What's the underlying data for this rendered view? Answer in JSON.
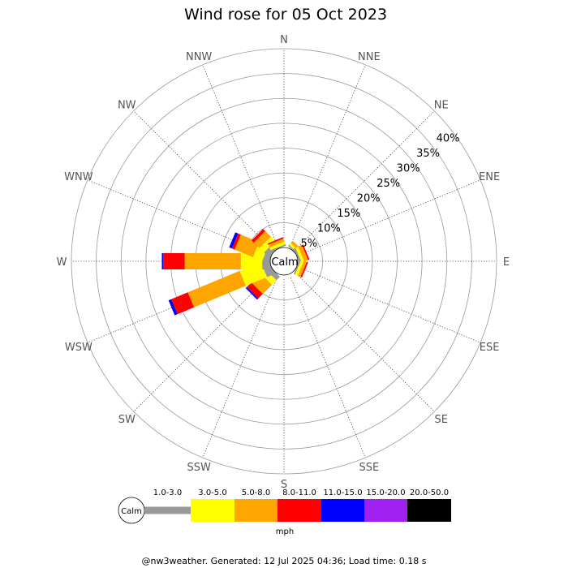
{
  "page": {
    "footer": "@nw3weather. Generated: 12 Jul 2025 04:36; Load time: 0.18 s"
  },
  "chart_data": {
    "type": "windrose",
    "title": "Wind rose for 05 Oct 2023",
    "center_label": "Calm",
    "unit": "mph",
    "directions": [
      "N",
      "NNE",
      "NE",
      "ENE",
      "E",
      "ESE",
      "SE",
      "SSE",
      "S",
      "SSW",
      "SW",
      "WSW",
      "W",
      "WNW",
      "NW",
      "NNW"
    ],
    "radial_ticks": [
      5,
      10,
      15,
      20,
      25,
      30,
      35,
      40
    ],
    "radial_tick_labels": [
      "5%",
      "10%",
      "15%",
      "20%",
      "25%",
      "30%",
      "35%",
      "40%"
    ],
    "radial_max": 40,
    "speed_bins": [
      {
        "label": "1.0-3.0",
        "color": "#999999"
      },
      {
        "label": "3.0-5.0",
        "color": "#ffff00"
      },
      {
        "label": "5.0-8.0",
        "color": "#ffa500"
      },
      {
        "label": "8.0-11.0",
        "color": "#ff0000"
      },
      {
        "label": "11.0-15.0",
        "color": "#0000ff"
      },
      {
        "label": "15.0-20.0",
        "color": "#a020f0"
      },
      {
        "label": "20.0-50.0",
        "color": "#000000"
      }
    ],
    "series": [
      {
        "direction": "N",
        "values": [
          0,
          0,
          0,
          0,
          0,
          0,
          0
        ]
      },
      {
        "direction": "NNE",
        "values": [
          0,
          0,
          0,
          0,
          0,
          0,
          0
        ]
      },
      {
        "direction": "NE",
        "values": [
          0.3,
          0.5,
          0.6,
          0,
          0,
          0,
          0
        ]
      },
      {
        "direction": "ENE",
        "values": [
          0.4,
          0.6,
          0.8,
          0.3,
          0,
          0,
          0
        ]
      },
      {
        "direction": "E",
        "values": [
          0,
          0,
          0,
          0,
          0,
          0,
          0
        ]
      },
      {
        "direction": "ESE",
        "values": [
          0.3,
          0.6,
          0.6,
          0.3,
          0,
          0,
          0
        ]
      },
      {
        "direction": "SE",
        "values": [
          0,
          0,
          0,
          0,
          0,
          0,
          0
        ]
      },
      {
        "direction": "SSE",
        "values": [
          0,
          0,
          0,
          0,
          0,
          0,
          0
        ]
      },
      {
        "direction": "S",
        "values": [
          0,
          0,
          0,
          0,
          0,
          0,
          0
        ]
      },
      {
        "direction": "SSW",
        "values": [
          0,
          0,
          0,
          0,
          0,
          0,
          0
        ]
      },
      {
        "direction": "SW",
        "values": [
          1.0,
          1.3,
          2.6,
          1.3,
          0.3,
          0,
          0
        ]
      },
      {
        "direction": "WSW",
        "values": [
          1.6,
          4.6,
          11.3,
          3.6,
          0.6,
          0,
          0
        ]
      },
      {
        "direction": "W",
        "values": [
          1.6,
          4.3,
          11.3,
          4.3,
          0.3,
          0,
          0
        ]
      },
      {
        "direction": "WNW",
        "values": [
          1.3,
          2.0,
          4.0,
          0.6,
          0.6,
          0,
          0
        ]
      },
      {
        "direction": "NW",
        "values": [
          1.3,
          1.3,
          1.6,
          0.6,
          0,
          0,
          0
        ]
      },
      {
        "direction": "NNW",
        "values": [
          0.3,
          0.6,
          0.6,
          0.3,
          0,
          0,
          0
        ]
      }
    ],
    "grid": true
  }
}
